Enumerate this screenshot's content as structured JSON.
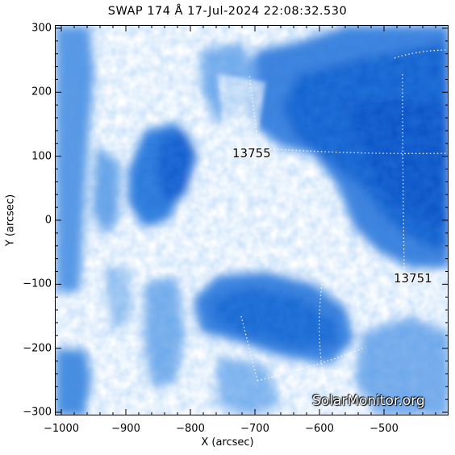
{
  "title": "SWAP 174 Å 17-Jul-2024 22:08:32.530",
  "axes": {
    "xlabel": "X (arcsec)",
    "ylabel": "Y (arcsec)",
    "xrange": [
      -1010,
      -400
    ],
    "yrange": [
      -305,
      305
    ],
    "xticks": [
      -1000,
      -900,
      -800,
      -700,
      -600,
      -500
    ],
    "yticks": [
      -300,
      -200,
      -100,
      0,
      100,
      200,
      300
    ],
    "xtick_labels": [
      "−1000",
      "−900",
      "−800",
      "−700",
      "−600",
      "−500"
    ],
    "ytick_labels": [
      "−300",
      "−200",
      "−100",
      "0",
      "100",
      "200",
      "300"
    ]
  },
  "regions": [
    {
      "label": "13755",
      "x": -705,
      "y": 103
    },
    {
      "label": "13751",
      "x": -455,
      "y": -92
    }
  ],
  "watermark": "SolarMonitor.org",
  "colors": {
    "deep_blue": "#0a55c8",
    "mid_blue": "#3f87e0",
    "light_blue": "#9cc4f2",
    "background": "#ffffff",
    "grid": "#ffffff"
  }
}
